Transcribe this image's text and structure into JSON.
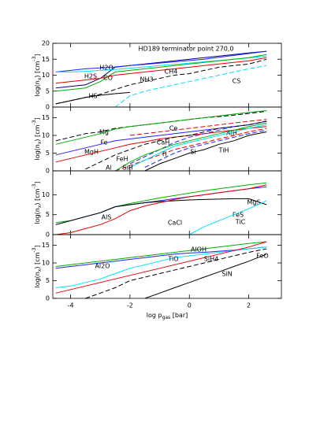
{
  "chart_data": [
    {
      "type": "line",
      "title": "HD189 terminator point 270,0",
      "ylabel": [
        "log(n",
        "x",
        ") [cm",
        "-3",
        "]"
      ],
      "x": [
        -4.5,
        -4,
        -3.5,
        -3,
        -2.5,
        -2,
        -1.5,
        -1,
        -0.5,
        0,
        0.5,
        1,
        1.5,
        2,
        2.6
      ],
      "xlim": [
        -4.6,
        3.1
      ],
      "xticks": [
        -4,
        -2,
        0,
        2
      ],
      "ylim": [
        0,
        20
      ],
      "yticks": [
        0,
        5,
        10,
        15,
        20
      ],
      "series": [
        {
          "color": "#000080",
          "dash": false,
          "values": [
            6,
            6.5,
            7,
            9,
            12.5,
            13,
            13.5,
            14,
            14.5,
            15,
            15.5,
            16,
            16.5,
            17,
            17.5
          ]
        },
        {
          "name": "H2O",
          "color": "#2222ff",
          "dash": false,
          "values": [
            11,
            11.5,
            12,
            12.3,
            12.6,
            13,
            13.4,
            13.8,
            14.2,
            14.6,
            15,
            15.6,
            16.2,
            16.8,
            17.5
          ]
        },
        {
          "name": "H2S",
          "color": "#00e0ff",
          "dash": false,
          "values": [
            11,
            11,
            11.2,
            11.5,
            11.8,
            12.2,
            12.6,
            13,
            13.4,
            13.8,
            14.2,
            14.6,
            15,
            15.4,
            16
          ]
        },
        {
          "name": "CO",
          "color": "#00b000",
          "dash": false,
          "values": [
            5,
            5.5,
            6,
            8,
            11,
            11.5,
            12,
            12.5,
            13,
            13.5,
            14,
            14.5,
            15,
            15.5,
            16.5
          ]
        },
        {
          "name": "NH3",
          "color": "#e00000",
          "dash": false,
          "values": [
            7.5,
            8,
            8.5,
            9,
            10,
            10.5,
            11,
            11.5,
            12,
            12.5,
            13,
            13.5,
            14,
            14.5,
            15.5
          ]
        },
        {
          "name": "CH4",
          "color": "#000000",
          "dash": true,
          "values": [
            1,
            2,
            3,
            4,
            5.5,
            7,
            8,
            9,
            10,
            10.5,
            11.5,
            12.5,
            13,
            13.5,
            15
          ]
        },
        {
          "name": "HS",
          "color": "#000000",
          "dash": false,
          "values": [
            1,
            2,
            3,
            3.7,
            4.2,
            4.6,
            null,
            null,
            null,
            null,
            null,
            null,
            null,
            null,
            null
          ]
        },
        {
          "name": "CS",
          "color": "#00e0ff",
          "dash": true,
          "values": [
            null,
            null,
            null,
            null,
            0,
            3.5,
            5,
            6,
            7,
            8,
            9,
            10,
            11,
            12,
            13
          ]
        }
      ]
    },
    {
      "type": "line",
      "ylabel": [
        "log(n",
        "x",
        ") [cm",
        "-3",
        "]"
      ],
      "x": [
        -4.5,
        -4,
        -3.5,
        -3,
        -2.5,
        -2,
        -1.5,
        -1,
        -0.5,
        0,
        0.5,
        1,
        1.5,
        2,
        2.6
      ],
      "xlim": [
        -4.6,
        3.1
      ],
      "xticks": [
        -4,
        -2,
        0,
        2
      ],
      "ylim": [
        0,
        18
      ],
      "yticks": [
        0,
        5,
        10,
        15
      ],
      "series": [
        {
          "name": "Mg",
          "color": "#000000",
          "dash": true,
          "values": [
            8.5,
            9.5,
            10.5,
            11,
            12,
            12.5,
            13,
            13.5,
            14,
            14.5,
            15,
            15.3,
            15.7,
            16.2,
            16.8
          ]
        },
        {
          "name": "Fe",
          "color": "#00b000",
          "dash": false,
          "values": [
            7.5,
            8.5,
            9.5,
            10.5,
            11.8,
            12.5,
            13,
            13.5,
            14,
            14.5,
            15,
            15.5,
            16,
            16.5,
            17
          ]
        },
        {
          "name": "MgH",
          "color": "#2222ff",
          "dash": false,
          "values": [
            4.5,
            5.5,
            6.5,
            7.5,
            8.5,
            9,
            9.5,
            10,
            10.5,
            11,
            11.5,
            12,
            12.5,
            13,
            14
          ]
        },
        {
          "name": "Ce",
          "color": "#e00000",
          "dash": true,
          "values": [
            null,
            null,
            null,
            null,
            null,
            10,
            10.5,
            11,
            11.5,
            12,
            12.5,
            13,
            13.5,
            14,
            14.5
          ]
        },
        {
          "name": "CaH",
          "color": "#e00000",
          "dash": false,
          "values": [
            2.5,
            3.5,
            4.5,
            5.5,
            6.5,
            7.5,
            8.2,
            9,
            9.5,
            10,
            10.5,
            11,
            11.5,
            12,
            12.5
          ]
        },
        {
          "name": "AlH",
          "color": "#2222ff",
          "dash": true,
          "values": [
            null,
            null,
            null,
            null,
            null,
            2,
            4,
            6,
            8,
            9.5,
            10.5,
            11.5,
            12.5,
            13,
            14
          ]
        },
        {
          "name": "FeH",
          "color": "#e00000",
          "dash": true,
          "values": [
            null,
            null,
            null,
            null,
            0,
            1.5,
            3,
            4.5,
            6,
            7,
            8,
            9,
            10,
            11,
            12
          ]
        },
        {
          "name": "Al",
          "color": "#00b000",
          "dash": false,
          "values": [
            null,
            null,
            null,
            null,
            0,
            2.5,
            4.5,
            6,
            7.5,
            8.5,
            9.5,
            10.5,
            11.5,
            12.5,
            13.5
          ]
        },
        {
          "name": "Ti",
          "color": "#000000",
          "dash": true,
          "values": [
            null,
            null,
            0.5,
            2.5,
            4.5,
            6,
            7.5,
            8.5,
            9.5,
            10,
            11,
            12,
            12.5,
            13,
            14
          ]
        },
        {
          "name": "SiH",
          "color": "#00e0ff",
          "dash": false,
          "values": [
            null,
            null,
            null,
            null,
            null,
            1,
            3,
            5,
            7,
            8,
            9,
            10,
            11,
            12,
            13
          ]
        },
        {
          "name": "Si",
          "color": "#2222ff",
          "dash": true,
          "values": [
            null,
            null,
            null,
            null,
            null,
            null,
            1,
            3,
            5,
            6.5,
            7.5,
            8.5,
            9.5,
            10.5,
            11.5
          ]
        },
        {
          "name": "TiH",
          "color": "#000000",
          "dash": false,
          "values": [
            null,
            null,
            null,
            null,
            null,
            null,
            0,
            2,
            3.5,
            5,
            6,
            7.5,
            8.5,
            10,
            11
          ]
        }
      ]
    },
    {
      "type": "line",
      "ylabel": [
        "log(n",
        "x",
        ") [cm",
        "-3",
        "]"
      ],
      "x": [
        -4.5,
        -4,
        -3.5,
        -3,
        -2.5,
        -2,
        -1.5,
        -1,
        -0.5,
        0,
        0.5,
        1,
        1.5,
        2,
        2.6
      ],
      "xlim": [
        -4.6,
        3.1
      ],
      "xticks": [
        -4,
        -2,
        0,
        2
      ],
      "ylim": [
        0,
        16
      ],
      "yticks": [
        0,
        5,
        10
      ],
      "series": [
        {
          "name": "MgS",
          "color": "#00b000",
          "dash": false,
          "values": [
            3,
            3.5,
            4.5,
            5.5,
            7,
            7.8,
            8.5,
            9.2,
            9.8,
            10.4,
            11,
            11.5,
            12,
            12.5,
            13
          ]
        },
        {
          "name": "FeS",
          "color": "#2222ff",
          "dash": false,
          "values": [
            2.5,
            3.5,
            4.5,
            5.5,
            7,
            7.5,
            8,
            8.5,
            9,
            9.5,
            10,
            10.5,
            11,
            11.5,
            12
          ]
        },
        {
          "name": "CaCl",
          "color": "#000000",
          "dash": false,
          "values": [
            2.5,
            3.5,
            4.5,
            5.5,
            7,
            7.5,
            8,
            8.3,
            8.5,
            8.7,
            8.8,
            8.9,
            9,
            9,
            7.5
          ]
        },
        {
          "name": "AlS",
          "color": "#e00000",
          "dash": false,
          "values": [
            0,
            0.5,
            1.5,
            2.5,
            4,
            6,
            7.2,
            8,
            8.8,
            9.5,
            10,
            10.5,
            11,
            11.5,
            12.5
          ]
        },
        {
          "name": "TiC",
          "color": "#00e0ff",
          "dash": false,
          "values": [
            null,
            null,
            null,
            null,
            null,
            null,
            null,
            null,
            null,
            0,
            2,
            3.5,
            5,
            6.5,
            8.5
          ]
        }
      ]
    },
    {
      "type": "line",
      "ylabel": [
        "log(n",
        "x",
        ") [cm",
        "-3",
        "]"
      ],
      "xlabel": [
        "log p",
        "gas",
        " [bar]"
      ],
      "x": [
        -4.5,
        -4,
        -3.5,
        -3,
        -2.5,
        -2,
        -1.5,
        -1,
        -0.5,
        0,
        0.5,
        1,
        1.5,
        2,
        2.6
      ],
      "xlim": [
        -4.6,
        3.1
      ],
      "xticks": [
        -4,
        -2,
        0,
        2
      ],
      "ylim": [
        0,
        18
      ],
      "yticks": [
        0,
        5,
        10,
        15
      ],
      "series": [
        {
          "name": "AlOH",
          "color": "#00b000",
          "dash": false,
          "values": [
            9,
            9.5,
            10,
            10.5,
            11,
            11.5,
            12,
            12.5,
            13,
            13.5,
            14,
            14.5,
            15,
            15.5,
            16
          ]
        },
        {
          "name": "Al2O",
          "color": "#2222ff",
          "dash": false,
          "values": [
            8.5,
            9,
            9.5,
            10,
            10.5,
            11,
            11.5,
            12,
            12.5,
            12.8,
            13,
            13.3,
            13.6,
            14,
            14.5
          ]
        },
        {
          "name": "TiO",
          "color": "#00e0ff",
          "dash": false,
          "values": [
            3,
            3.5,
            4.5,
            5.5,
            7,
            8.5,
            9.5,
            10.5,
            11.5,
            12,
            12.5,
            13,
            13.5,
            14,
            14.5
          ]
        },
        {
          "name": "SiH4",
          "color": "#e00000",
          "dash": false,
          "values": [
            1.5,
            2.5,
            3.5,
            4.5,
            5.5,
            6.5,
            7.5,
            8.5,
            9.5,
            10.5,
            11.5,
            12.5,
            13.5,
            14.5,
            16
          ]
        },
        {
          "name": "FeO",
          "color": "#000000",
          "dash": true,
          "values": [
            null,
            null,
            0,
            1.5,
            3,
            5,
            6,
            7,
            8,
            9,
            10,
            11,
            12,
            13,
            14
          ]
        },
        {
          "name": "SiN",
          "color": "#000000",
          "dash": false,
          "values": [
            null,
            null,
            null,
            null,
            null,
            null,
            0,
            1.5,
            3,
            4.5,
            6,
            7.5,
            9,
            10.5,
            12.5
          ]
        }
      ]
    }
  ]
}
